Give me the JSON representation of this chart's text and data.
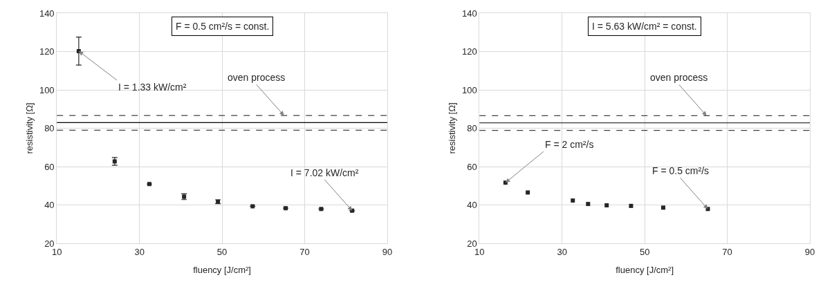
{
  "chart_data": [
    {
      "type": "scatter",
      "xlabel": "fluency [J/cm²]",
      "ylabel": "resistivity [Ω]",
      "x": [
        15.3,
        24.0,
        32.4,
        40.8,
        49.0,
        57.4,
        65.4,
        74.0,
        81.5
      ],
      "series": [
        {
          "color": "#262626",
          "values": [
            120.2,
            62.7,
            50.9,
            44.3,
            41.7,
            39.3,
            38.3,
            37.9,
            37.0
          ],
          "errors": [
            7.3,
            2,
            null,
            1.5,
            1,
            null,
            null,
            null,
            null
          ]
        }
      ],
      "xlim": [
        10,
        90
      ],
      "xticks": [
        10,
        30,
        50,
        70,
        90
      ],
      "ylim": [
        20,
        140
      ],
      "yticks": [
        20,
        40,
        60,
        80,
        100,
        120,
        140
      ],
      "grid": true,
      "marker": "square",
      "ref_lines": [
        {
          "axis": "y",
          "value": 86.6,
          "color": "#404040",
          "line_style": "dashed"
        },
        {
          "axis": "y",
          "value": 82.9,
          "color": "#000000",
          "line_style": "solid"
        },
        {
          "axis": "y",
          "value": 79.0,
          "color": "#404040",
          "line_style": "dashed"
        }
      ],
      "annotations": [
        "F = 0.5 cm²/s = const.",
        {
          "text": "oven process",
          "x": 65,
          "y": 86.6
        },
        {
          "text": "I = 1.33 kW/cm²",
          "x": 15.3,
          "y": 120.2
        },
        {
          "text": "I = 7.02 kW/cm²",
          "x": 81.5,
          "y": 37.0
        }
      ]
    },
    {
      "type": "scatter",
      "xlabel": "fluency [J/cm²]",
      "ylabel": "resistivity [Ω]",
      "x": [
        16.3,
        21.7,
        32.6,
        36.3,
        40.8,
        46.7,
        54.5,
        65.3
      ],
      "series": [
        {
          "color": "#262626",
          "values": [
            51.6,
            46.5,
            42.3,
            40.5,
            39.8,
            39.5,
            38.6,
            37.9
          ]
        }
      ],
      "xlim": [
        10,
        90
      ],
      "xticks": [
        10,
        30,
        50,
        70,
        90
      ],
      "ylim": [
        20,
        140
      ],
      "yticks": [
        20,
        40,
        60,
        80,
        100,
        120,
        140
      ],
      "grid": true,
      "marker": "square",
      "ref_lines": [
        {
          "axis": "y",
          "value": 86.5,
          "color": "#404040",
          "line_style": "dashed"
        },
        {
          "axis": "y",
          "value": 82.8,
          "color": "#000000",
          "line_style": "solid"
        },
        {
          "axis": "y",
          "value": 78.9,
          "color": "#404040",
          "line_style": "dashed"
        }
      ],
      "annotations": [
        "I = 5.63 kW/cm² = const.",
        {
          "text": "oven process",
          "x": 65,
          "y": 86.5
        },
        {
          "text": "F = 2 cm²/s",
          "x": 16.3,
          "y": 51.6
        },
        {
          "text": "F = 0.5 cm²/s",
          "x": 65.3,
          "y": 37.9
        }
      ]
    }
  ]
}
